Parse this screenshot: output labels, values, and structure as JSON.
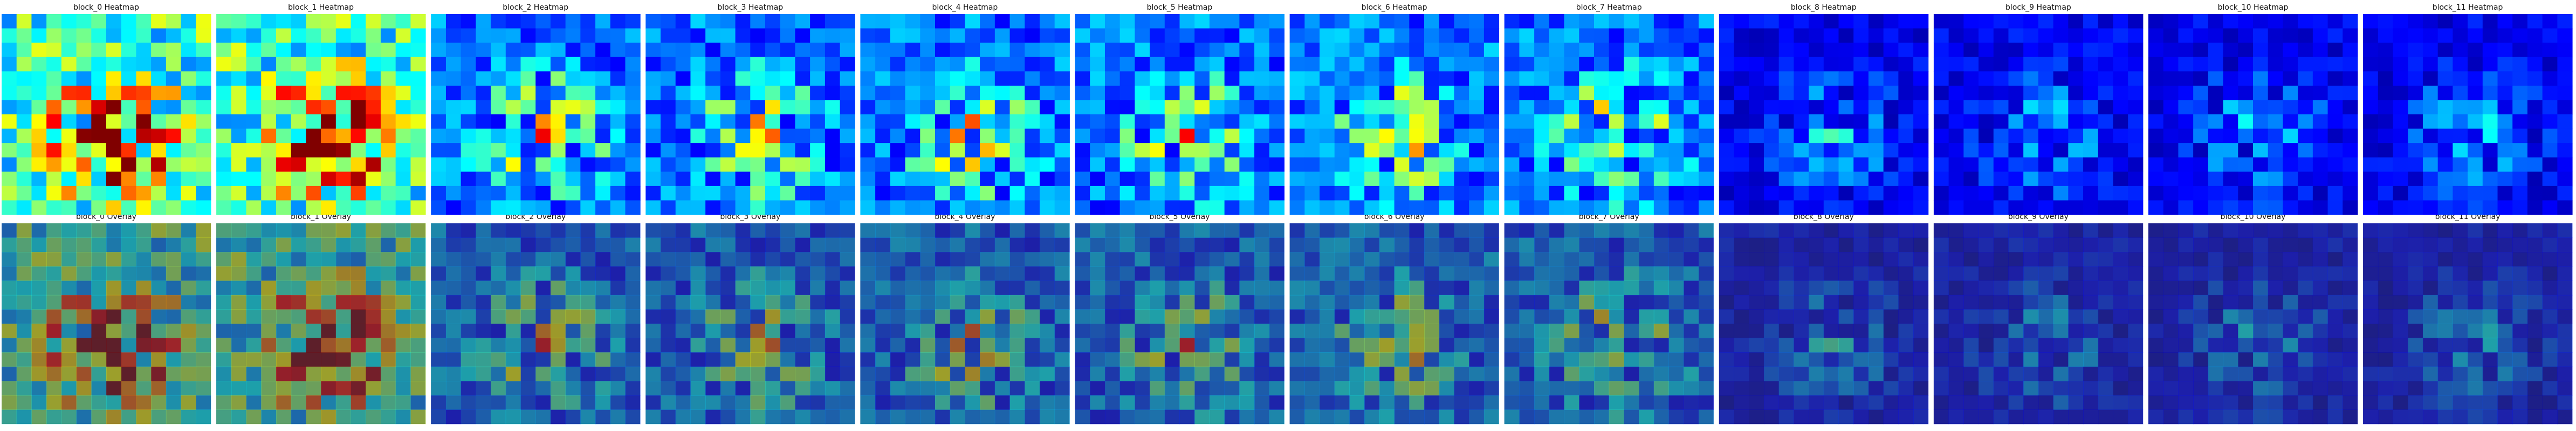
{
  "panels": [
    {
      "heatmap_title": "block_0 Heatmap",
      "overlay_title": "block_0 Overlay"
    },
    {
      "heatmap_title": "block_1 Heatmap",
      "overlay_title": "block_1 Overlay"
    },
    {
      "heatmap_title": "block_2 Heatmap",
      "overlay_title": "block_2 Overlay"
    },
    {
      "heatmap_title": "block_3 Heatmap",
      "overlay_title": "block_3 Overlay"
    },
    {
      "heatmap_title": "block_4 Heatmap",
      "overlay_title": "block_4 Overlay"
    },
    {
      "heatmap_title": "block_5 Heatmap",
      "overlay_title": "block_5 Overlay"
    },
    {
      "heatmap_title": "block_6 Heatmap",
      "overlay_title": "block_6 Overlay"
    },
    {
      "heatmap_title": "block_7 Heatmap",
      "overlay_title": "block_7 Overlay"
    },
    {
      "heatmap_title": "block_8 Heatmap",
      "overlay_title": "block_8 Overlay"
    },
    {
      "heatmap_title": "block_9 Heatmap",
      "overlay_title": "block_9 Overlay"
    },
    {
      "heatmap_title": "block_10 Heatmap",
      "overlay_title": "block_10 Overlay"
    },
    {
      "heatmap_title": "block_11 Heatmap",
      "overlay_title": "block_11 Overlay"
    }
  ]
}
